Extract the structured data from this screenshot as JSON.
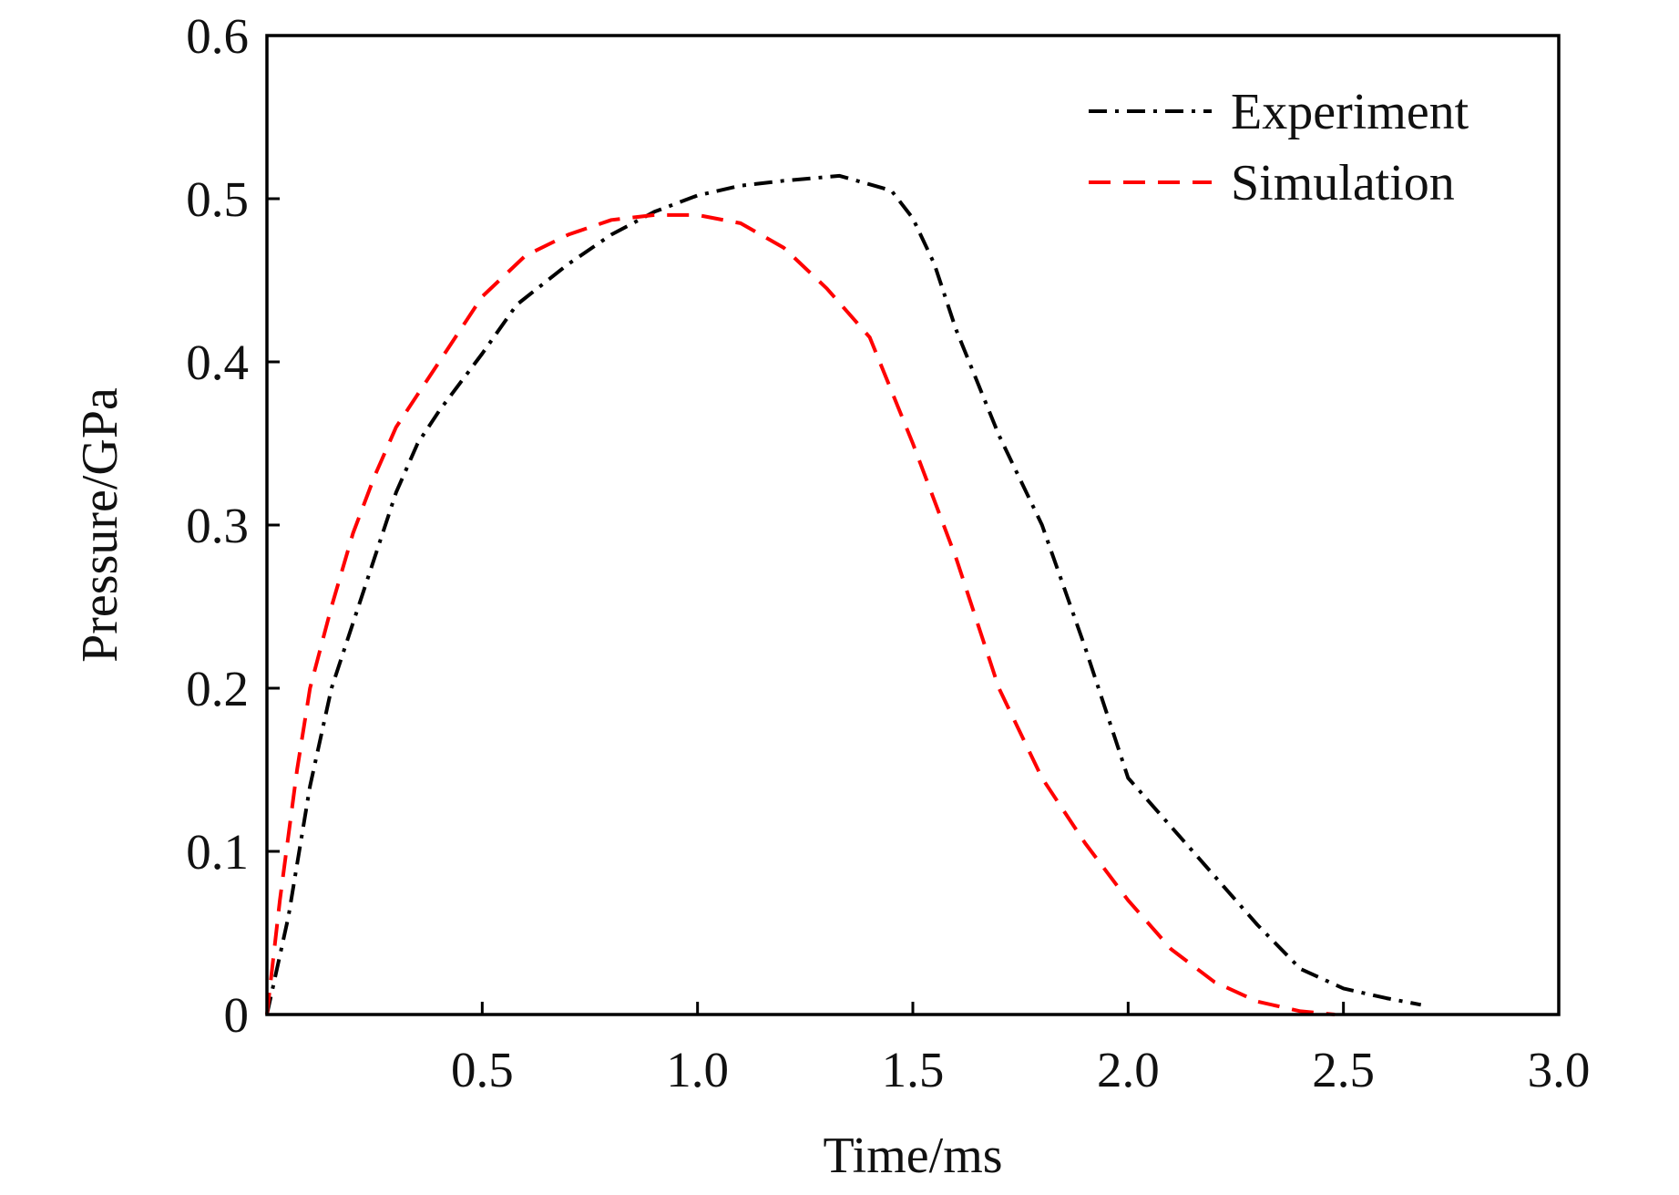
{
  "chart_data": {
    "type": "line",
    "title": "",
    "xlabel": "Time/ms",
    "ylabel": "Pressure/GPa",
    "xlim": [
      0,
      3.0
    ],
    "ylim": [
      0,
      0.6
    ],
    "xticks": [
      0.5,
      1.0,
      1.5,
      2.0,
      2.5,
      3.0
    ],
    "xtick_labels": [
      "0.5",
      "1.0",
      "1.5",
      "2.0",
      "2.5",
      "3.0"
    ],
    "yticks": [
      0,
      0.1,
      0.2,
      0.3,
      0.4,
      0.5,
      0.6
    ],
    "ytick_labels": [
      "0",
      "0.1",
      "0.2",
      "0.3",
      "0.4",
      "0.5",
      "0.6"
    ],
    "grid": false,
    "legend_position": "top-right",
    "series": [
      {
        "name": "Experiment",
        "color": "#000000",
        "style": "dash-dot",
        "x": [
          0,
          0.05,
          0.1,
          0.15,
          0.2,
          0.25,
          0.3,
          0.35,
          0.4,
          0.5,
          0.58,
          0.7,
          0.8,
          0.9,
          1.0,
          1.1,
          1.2,
          1.33,
          1.45,
          1.5,
          1.55,
          1.6,
          1.7,
          1.8,
          1.9,
          2.0,
          2.1,
          2.2,
          2.3,
          2.4,
          2.5,
          2.6,
          2.68
        ],
        "y": [
          0,
          0.06,
          0.14,
          0.2,
          0.24,
          0.28,
          0.32,
          0.35,
          0.37,
          0.405,
          0.435,
          0.46,
          0.478,
          0.492,
          0.502,
          0.508,
          0.511,
          0.514,
          0.505,
          0.488,
          0.46,
          0.42,
          0.355,
          0.3,
          0.225,
          0.145,
          0.115,
          0.085,
          0.055,
          0.028,
          0.016,
          0.01,
          0.006
        ]
      },
      {
        "name": "Simulation",
        "color": "#ff0000",
        "style": "dashed",
        "x": [
          0,
          0.03,
          0.07,
          0.1,
          0.15,
          0.2,
          0.25,
          0.3,
          0.35,
          0.4,
          0.5,
          0.6,
          0.7,
          0.8,
          0.9,
          1.0,
          1.1,
          1.2,
          1.3,
          1.4,
          1.5,
          1.6,
          1.7,
          1.8,
          1.9,
          2.0,
          2.1,
          2.2,
          2.3,
          2.4,
          2.48
        ],
        "y": [
          0,
          0.07,
          0.15,
          0.2,
          0.25,
          0.295,
          0.33,
          0.36,
          0.38,
          0.4,
          0.44,
          0.465,
          0.478,
          0.487,
          0.49,
          0.49,
          0.485,
          0.47,
          0.445,
          0.415,
          0.35,
          0.28,
          0.2,
          0.145,
          0.105,
          0.07,
          0.04,
          0.02,
          0.008,
          0.002,
          0
        ]
      }
    ]
  }
}
